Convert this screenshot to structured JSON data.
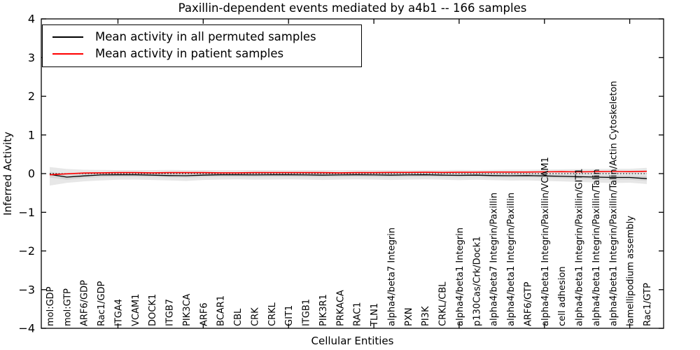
{
  "colors": {
    "black": "#000000",
    "red": "#ff0000",
    "band_outer": "#e7e7e7",
    "band_inner": "#d6d6d6",
    "background": "#ffffff"
  },
  "chart_data": {
    "type": "line",
    "title": "Paxillin-dependent events mediated by a4b1 -- 166 samples",
    "xlabel": "Cellular Entities",
    "ylabel": "Inferred Activity",
    "ylim": [
      -4,
      4
    ],
    "ytick_values": [
      4,
      3,
      2,
      1,
      0,
      -1,
      -2,
      -3,
      -4
    ],
    "ytick_labels": [
      "4",
      "3",
      "2",
      "1",
      "0",
      "−1",
      "−2",
      "−3",
      "−4"
    ],
    "grid": false,
    "legend_position": "upper left",
    "categories": [
      "mol:GDP",
      "mol:GTP",
      "ARF6/GDP",
      "Rac1/GDP",
      "ITGA4",
      "VCAM1",
      "DOCK1",
      "ITGB7",
      "PIK3CA",
      "ARF6",
      "BCAR1",
      "CBL",
      "CRK",
      "CRKL",
      "GIT1",
      "ITGB1",
      "PIK3R1",
      "PRKACA",
      "RAC1",
      "TLN1",
      "alpha4/beta7 Integrin",
      "PXN",
      "PI3K",
      "CRKL/CBL",
      "alpha4/beta1 Integrin",
      "p130Cas/Crk/Dock1",
      "alpha4/beta7 Integrin/Paxillin",
      "alpha4/beta1 Integrin/Paxillin",
      "ARF6/GTP",
      "alpha4/beta1 Integrin/Paxillin/VCAM1",
      "cell adhesion",
      "alpha4/beta1 Integrin/Paxillin/GIT1",
      "alpha4/beta1 Integrin/Paxillin/Talin",
      "alpha4/beta1 Integrin/Paxillin/Talin/Actin Cytoskeleton",
      "lamellipodium assembly",
      "Rac1/GTP"
    ],
    "xtick_mark_indices": [
      4,
      9,
      14,
      19,
      24,
      29,
      34
    ],
    "series": [
      {
        "name": "Mean activity in all permuted samples",
        "color": "#000000",
        "values": [
          -0.02,
          -0.09,
          -0.06,
          -0.035,
          -0.03,
          -0.03,
          -0.04,
          -0.05,
          -0.055,
          -0.04,
          -0.03,
          -0.03,
          -0.035,
          -0.03,
          -0.03,
          -0.035,
          -0.04,
          -0.035,
          -0.03,
          -0.035,
          -0.04,
          -0.035,
          -0.03,
          -0.04,
          -0.045,
          -0.04,
          -0.05,
          -0.055,
          -0.05,
          -0.06,
          -0.07,
          -0.08,
          -0.09,
          -0.1,
          -0.1,
          -0.13
        ]
      },
      {
        "name": "Mean activity in patient samples",
        "color": "#ff0000",
        "values": [
          -0.03,
          -0.005,
          0.015,
          0.02,
          0.025,
          0.025,
          0.02,
          0.025,
          0.025,
          0.025,
          0.02,
          0.02,
          0.025,
          0.025,
          0.025,
          0.025,
          0.025,
          0.02,
          0.025,
          0.025,
          0.03,
          0.03,
          0.035,
          0.03,
          0.035,
          0.035,
          0.04,
          0.04,
          0.04,
          0.045,
          0.05,
          0.045,
          0.05,
          0.055,
          0.05,
          0.06
        ]
      }
    ],
    "bands": [
      {
        "name": "permuted-spread-outer",
        "color": "#e7e7e7",
        "upper": [
          0.17,
          0.12,
          0.1,
          0.095,
          0.09,
          0.09,
          0.09,
          0.095,
          0.09,
          0.09,
          0.085,
          0.085,
          0.09,
          0.09,
          0.085,
          0.09,
          0.09,
          0.085,
          0.09,
          0.09,
          0.09,
          0.085,
          0.09,
          0.09,
          0.095,
          0.09,
          0.095,
          0.1,
          0.1,
          0.105,
          0.11,
          0.115,
          0.12,
          0.125,
          0.125,
          0.15
        ],
        "lower": [
          -0.31,
          -0.24,
          -0.2,
          -0.175,
          -0.16,
          -0.155,
          -0.165,
          -0.175,
          -0.19,
          -0.165,
          -0.155,
          -0.15,
          -0.16,
          -0.155,
          -0.15,
          -0.155,
          -0.165,
          -0.155,
          -0.15,
          -0.155,
          -0.165,
          -0.155,
          -0.15,
          -0.16,
          -0.17,
          -0.16,
          -0.17,
          -0.18,
          -0.175,
          -0.19,
          -0.2,
          -0.215,
          -0.23,
          -0.245,
          -0.235,
          -0.27
        ]
      },
      {
        "name": "permuted-spread-inner",
        "color": "#d6d6d6",
        "upper": [
          0.05,
          -0.02,
          -0.005,
          0.01,
          0.015,
          0.015,
          0.005,
          0.0,
          -0.005,
          0.005,
          0.015,
          0.015,
          0.01,
          0.015,
          0.015,
          0.01,
          0.005,
          0.01,
          0.015,
          0.01,
          0.005,
          0.01,
          0.015,
          0.005,
          0.0,
          0.005,
          -0.005,
          -0.005,
          -0.005,
          -0.01,
          -0.02,
          -0.03,
          -0.04,
          -0.045,
          -0.045,
          -0.06
        ],
        "lower": [
          -0.1,
          -0.16,
          -0.12,
          -0.09,
          -0.08,
          -0.08,
          -0.09,
          -0.1,
          -0.11,
          -0.09,
          -0.08,
          -0.08,
          -0.085,
          -0.08,
          -0.08,
          -0.085,
          -0.09,
          -0.085,
          -0.08,
          -0.085,
          -0.09,
          -0.085,
          -0.08,
          -0.09,
          -0.095,
          -0.09,
          -0.1,
          -0.105,
          -0.1,
          -0.11,
          -0.12,
          -0.135,
          -0.15,
          -0.16,
          -0.16,
          -0.19
        ]
      }
    ],
    "zero_line": {
      "y": 0,
      "style": "dashed",
      "color": "#000000"
    }
  }
}
